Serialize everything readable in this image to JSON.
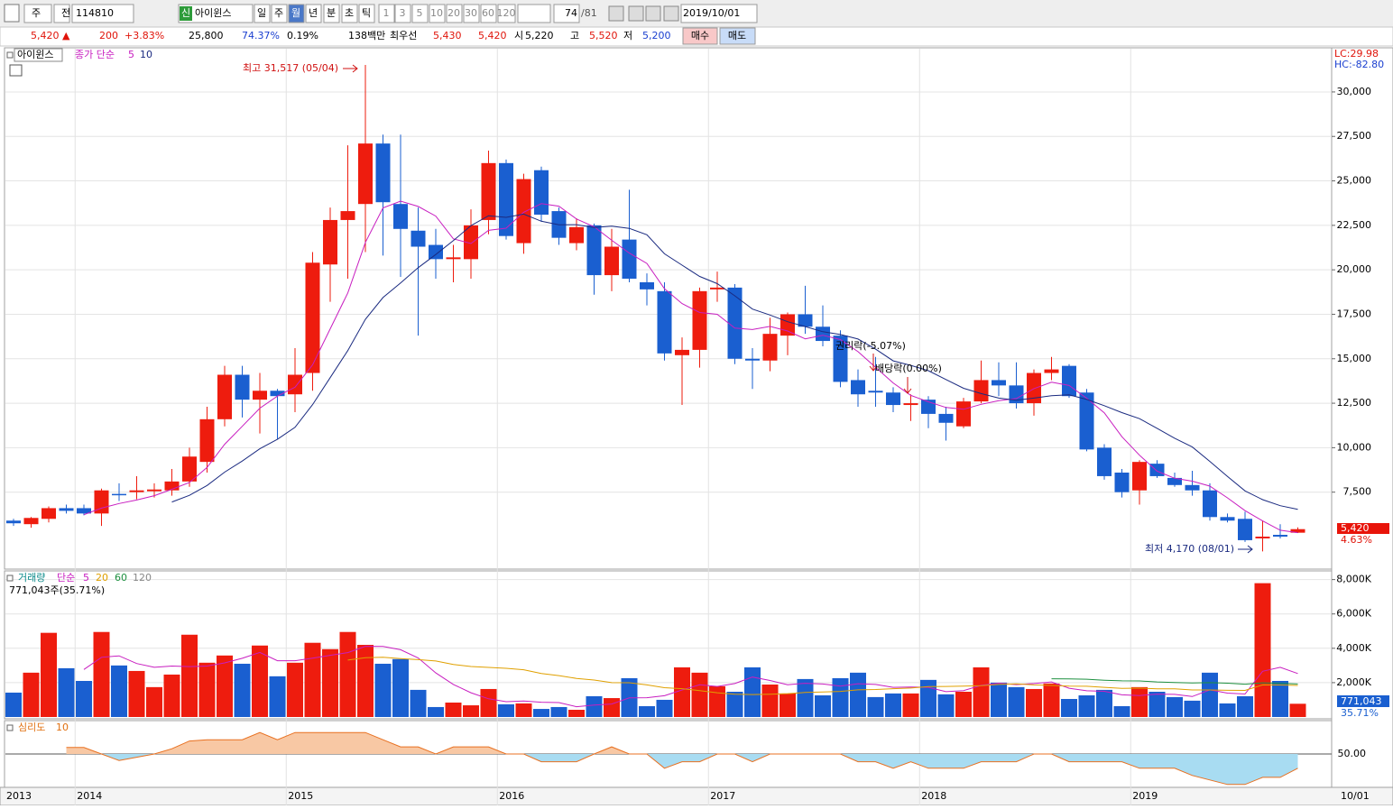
{
  "toolbar": {
    "period_select": "주",
    "prev": "전",
    "code": "114810",
    "badge": "신",
    "name": "아이윈스",
    "periods": [
      "일",
      "주",
      "월",
      "년",
      "분",
      "초",
      "틱"
    ],
    "intervals": [
      "1",
      "3",
      "5",
      "10",
      "20",
      "30",
      "60",
      "120"
    ],
    "count": "74",
    "total": "/81",
    "date": "2019/10/01"
  },
  "quote": {
    "price": "5,420 ▲",
    "change": "200",
    "change_pct": "+3.83%",
    "ref": "25,800",
    "rate": "74.37%",
    "turnover": "0.19%",
    "amount": "138백만",
    "best_label": "최우선",
    "ask": "5,430",
    "bid": "5,420",
    "open_label": "시",
    "open": "5,220",
    "high_label": "고",
    "high": "5,520",
    "low_label": "저",
    "low": "5,200",
    "buy": "매수",
    "sell": "매도"
  },
  "x_axis": {
    "start_label": "2013",
    "end_label": "10/01"
  },
  "chart_data": [
    {
      "type": "candlestick",
      "name": "아이윈스",
      "indicator": "종가 단순",
      "ma_periods": [
        5,
        10
      ],
      "ma_colors": [
        "#c81ec0",
        "#1a2a80"
      ],
      "up_color": "#ee1c0e",
      "down_color": "#1a5fd0",
      "categories": [
        null,
        null,
        null,
        null,
        "2014",
        null,
        null,
        null,
        null,
        null,
        null,
        null,
        null,
        null,
        null,
        null,
        "2015",
        null,
        null,
        null,
        null,
        null,
        null,
        null,
        null,
        null,
        null,
        null,
        "2016",
        null,
        null,
        null,
        null,
        null,
        null,
        null,
        null,
        null,
        null,
        null,
        "2017",
        null,
        null,
        null,
        null,
        null,
        null,
        null,
        null,
        null,
        null,
        null,
        "2018",
        null,
        null,
        null,
        null,
        null,
        null,
        null,
        null,
        null,
        null,
        null,
        "2019",
        null,
        null,
        null,
        null,
        null,
        null,
        null,
        null,
        null
      ],
      "open": [
        5900,
        5700,
        6000,
        6600,
        6600,
        6300,
        7400,
        7500,
        7550,
        7600,
        8100,
        9200,
        11600,
        14100,
        12700,
        13200,
        13000,
        14200,
        20300,
        22800,
        23700,
        27100,
        23700,
        22200,
        21400,
        20600,
        20600,
        22800,
        26000,
        21500,
        25600,
        23300,
        21500,
        22500,
        19700,
        21700,
        19300,
        18800,
        15200,
        15500,
        18900,
        19000,
        15000,
        14900,
        16300,
        17500,
        16800,
        16300,
        13800,
        13200,
        13100,
        12400,
        12700,
        11900,
        11200,
        12600,
        13800,
        13500,
        12500,
        14200,
        14600,
        13100,
        10000,
        8600,
        7600,
        9100,
        8300,
        7900,
        7600,
        6100,
        6000,
        4900,
        5100,
        5220
      ],
      "high": [
        6000,
        6100,
        6700,
        6800,
        6800,
        7700,
        8000,
        8400,
        8000,
        8800,
        10000,
        12300,
        14600,
        14600,
        14200,
        13300,
        15600,
        21000,
        23500,
        27000,
        31517,
        27600,
        27600,
        23500,
        22300,
        21400,
        23400,
        26700,
        26200,
        25400,
        25800,
        23500,
        22900,
        22600,
        22300,
        24500,
        19800,
        19300,
        16200,
        19000,
        19900,
        19200,
        15600,
        17300,
        17600,
        19100,
        18000,
        16600,
        14400,
        15100,
        13400,
        13000,
        12900,
        12300,
        12800,
        14900,
        14800,
        14800,
        14400,
        15100,
        14700,
        13300,
        10200,
        8800,
        9300,
        9300,
        8600,
        8700,
        8000,
        6300,
        6400,
        5900,
        5700,
        5520
      ],
      "low": [
        5600,
        5500,
        5800,
        6300,
        6200,
        5600,
        7000,
        7100,
        7200,
        7300,
        7800,
        8600,
        11200,
        11700,
        10800,
        10500,
        12000,
        13200,
        18200,
        19500,
        21000,
        20800,
        19600,
        16300,
        19500,
        19300,
        19500,
        22000,
        21700,
        20900,
        22700,
        21400,
        21100,
        18600,
        18800,
        19300,
        18000,
        14900,
        12400,
        14500,
        18200,
        14700,
        13300,
        14300,
        15200,
        16400,
        15700,
        13400,
        12300,
        12300,
        12000,
        11500,
        11100,
        10400,
        11100,
        12500,
        12900,
        12200,
        11800,
        13800,
        12800,
        9800,
        8200,
        7200,
        6800,
        8300,
        7800,
        7300,
        5900,
        5800,
        4700,
        4170,
        4900,
        5200
      ],
      "close": [
        5750,
        6050,
        6600,
        6450,
        6300,
        7600,
        7350,
        7600,
        7650,
        8100,
        9500,
        11600,
        14100,
        12700,
        13200,
        12900,
        14100,
        20400,
        22800,
        23300,
        27100,
        23800,
        22300,
        21300,
        20600,
        20700,
        22500,
        26000,
        21900,
        25100,
        23100,
        21800,
        22400,
        19700,
        21300,
        19500,
        18900,
        15300,
        15500,
        18800,
        19000,
        15000,
        14900,
        16400,
        17500,
        16800,
        16000,
        13700,
        13000,
        13100,
        12400,
        12500,
        11900,
        11400,
        12600,
        13800,
        13500,
        12500,
        14200,
        14400,
        12900,
        9900,
        8400,
        7500,
        9200,
        8400,
        7900,
        7600,
        6100,
        5900,
        4800,
        5000,
        5000,
        5420
      ],
      "ylim": [
        3225,
        32380
      ],
      "yticks": [
        {
          "value": 7500,
          "label": "7,500"
        },
        {
          "value": 10000,
          "label": "10,000"
        },
        {
          "value": 12500,
          "label": "12,500"
        },
        {
          "value": 15000,
          "label": "15,000"
        },
        {
          "value": 17500,
          "label": "17,500"
        },
        {
          "value": 20000,
          "label": "20,000"
        },
        {
          "value": 22500,
          "label": "22,500"
        },
        {
          "value": 25000,
          "label": "25,000"
        },
        {
          "value": 27500,
          "label": "27,500"
        },
        {
          "value": 30000,
          "label": "30,000"
        }
      ],
      "high_note": "최고 31,517 (05/04)",
      "low_note": "최저 4,170 (08/01)",
      "rights_note": "권리락(-5.07%)",
      "dividend_note": "배당락(0.00%)",
      "lc": "LC:29.98",
      "hc": "HC:-82.80",
      "last_label": "5,420",
      "last_pct": "4.63%"
    },
    {
      "type": "bar",
      "title": "거래량",
      "indicator": "단순",
      "ma_periods": [
        5,
        20,
        60,
        120
      ],
      "ma_colors": [
        "#c81ec0",
        "#e0a000",
        "#1e9040",
        "#888888"
      ],
      "summary": "771,043주(35.71%)",
      "last_label": "771,043",
      "last_pct": "35.71%",
      "values": [
        1420000,
        2580000,
        4900000,
        2840000,
        2100000,
        4950000,
        3000000,
        2680000,
        1740000,
        2470000,
        4790000,
        3160000,
        3580000,
        3100000,
        4160000,
        2370000,
        3160000,
        4320000,
        3950000,
        4950000,
        4200000,
        3100000,
        3370000,
        1580000,
        580000,
        840000,
        680000,
        1630000,
        740000,
        790000,
        470000,
        580000,
        420000,
        1210000,
        1100000,
        2260000,
        630000,
        1000000,
        2890000,
        2580000,
        1790000,
        1470000,
        2890000,
        1890000,
        1370000,
        2210000,
        1260000,
        2260000,
        2580000,
        1160000,
        1370000,
        1370000,
        2160000,
        1320000,
        1470000,
        2890000,
        2000000,
        1740000,
        1630000,
        1950000,
        1050000,
        1260000,
        1580000,
        630000,
        1740000,
        1470000,
        1160000,
        950000,
        2580000,
        790000,
        1210000,
        7790000,
        2100000,
        771043
      ],
      "ylim": [
        0,
        8400000
      ],
      "yticks": [
        {
          "value": 2000000,
          "label": "2,000K"
        },
        {
          "value": 4000000,
          "label": "4,000K"
        },
        {
          "value": 6000000,
          "label": "6,000K"
        },
        {
          "value": 8000000,
          "label": "8,000K"
        }
      ]
    },
    {
      "type": "area",
      "title": "심리도",
      "period": 10,
      "color": "#e87020",
      "above_fill": "#f8c8a4",
      "below_fill": "#a8dcf2",
      "values": [
        null,
        null,
        null,
        60,
        60,
        50,
        40,
        45,
        50,
        58,
        70,
        72,
        72,
        72,
        83,
        72,
        83,
        83,
        83,
        83,
        83,
        72,
        61,
        61,
        50,
        61,
        61,
        61,
        50,
        50,
        38,
        38,
        38,
        50,
        61,
        50,
        50,
        28,
        38,
        38,
        50,
        50,
        38,
        50,
        50,
        50,
        50,
        50,
        38,
        38,
        28,
        38,
        28,
        28,
        28,
        38,
        38,
        38,
        50,
        50,
        38,
        38,
        38,
        38,
        28,
        28,
        28,
        17,
        10,
        3,
        3,
        14,
        14,
        28
      ],
      "ylim": [
        0,
        100
      ],
      "yticks": [
        {
          "value": 50,
          "label": "50.00"
        }
      ]
    }
  ]
}
